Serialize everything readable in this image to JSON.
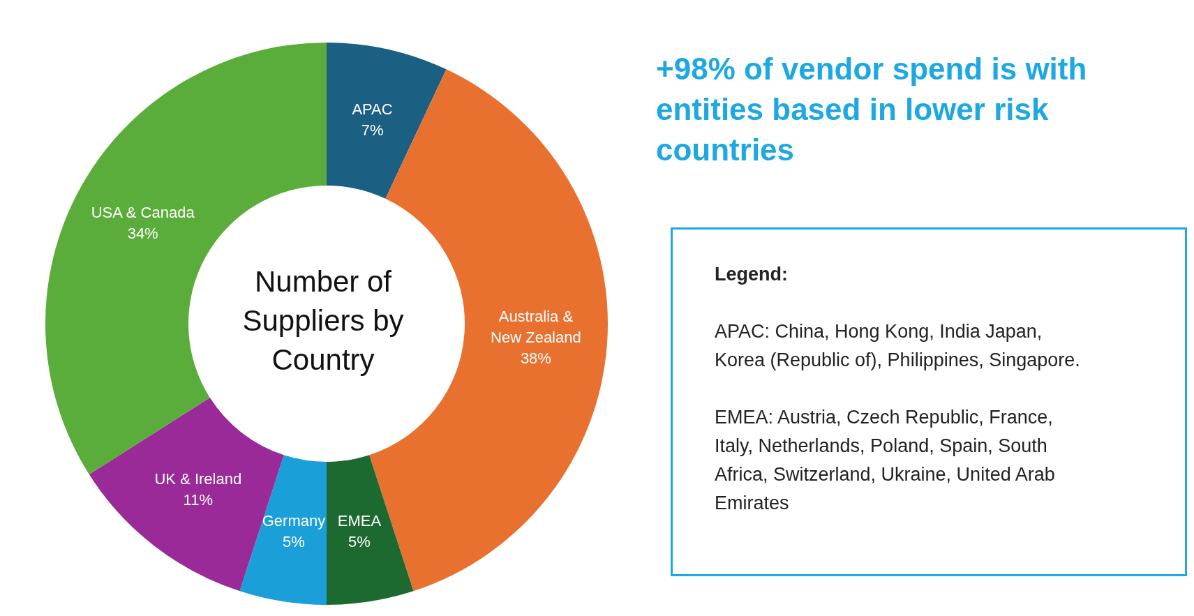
{
  "chart_data": {
    "type": "donut",
    "title": "Number of Suppliers by Country",
    "categories": [
      "APAC",
      "Australia & New Zealand",
      "EMEA",
      "Germany",
      "UK & Ireland",
      "USA & Canada"
    ],
    "values": [
      7,
      38,
      5,
      5,
      11,
      34
    ],
    "colors": [
      "#1b5f82",
      "#e87130",
      "#1d6a31",
      "#1b9fd9",
      "#9a2a98",
      "#5bad3b"
    ],
    "value_labels": [
      "7%",
      "38%",
      "5%",
      "5%",
      "11%",
      "34%"
    ],
    "legend": false,
    "annotations": [
      "+98% of vendor spend is with entities based in lower risk countries",
      "Legend:",
      "APAC: China, Hong Kong, India Japan, Korea (Republic of), Philippines, Singapore.",
      "EMEA: Austria, Czech Republic, France, Italy, Netherlands, Poland, Spain, South Africa, Switzerland, Ukraine, United Arab Emirates"
    ]
  }
}
